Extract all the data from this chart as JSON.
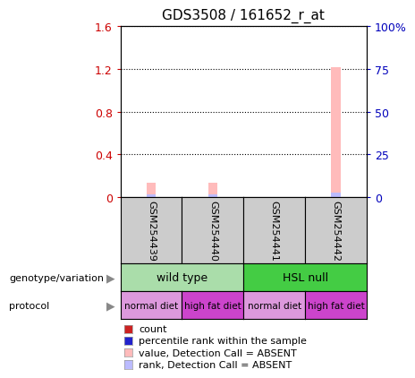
{
  "title": "GDS3508 / 161652_r_at",
  "samples": [
    "GSM254439",
    "GSM254440",
    "GSM254441",
    "GSM254442"
  ],
  "bar_values_absent": [
    0.13,
    0.13,
    0.0,
    1.22
  ],
  "rank_values_absent": [
    0.02,
    0.02,
    0.0,
    0.04
  ],
  "ylim_left": [
    0,
    1.6
  ],
  "ylim_right": [
    0,
    100
  ],
  "yticks_left": [
    0,
    0.4,
    0.8,
    1.2,
    1.6
  ],
  "yticks_right": [
    0,
    25,
    50,
    75,
    100
  ],
  "ytick_labels_left": [
    "0",
    "0.4",
    "0.8",
    "1.2",
    "1.6"
  ],
  "ytick_labels_right": [
    "0",
    "25",
    "50",
    "75",
    "100%"
  ],
  "left_tick_color": "#cc0000",
  "right_tick_color": "#0000bb",
  "genotype_groups": [
    {
      "label": "wild type",
      "color": "#aaddaa",
      "start": 0,
      "end": 2
    },
    {
      "label": "HSL null",
      "color": "#44cc44",
      "start": 2,
      "end": 4
    }
  ],
  "protocol_groups": [
    {
      "label": "normal diet",
      "color": "#dd99dd",
      "start": 0,
      "end": 1
    },
    {
      "label": "high fat diet",
      "color": "#cc44cc",
      "start": 1,
      "end": 2
    },
    {
      "label": "normal diet",
      "color": "#dd99dd",
      "start": 2,
      "end": 3
    },
    {
      "label": "high fat diet",
      "color": "#cc44cc",
      "start": 3,
      "end": 4
    }
  ],
  "legend_items": [
    {
      "label": "count",
      "color": "#cc2222"
    },
    {
      "label": "percentile rank within the sample",
      "color": "#2222cc"
    },
    {
      "label": "value, Detection Call = ABSENT",
      "color": "#ffbbbb"
    },
    {
      "label": "rank, Detection Call = ABSENT",
      "color": "#bbbbff"
    }
  ],
  "bar_color_absent": "#ffbbbb",
  "rank_color_absent": "#bbbbff",
  "sample_box_color": "#cccccc",
  "dotted_line_color": "#000000"
}
